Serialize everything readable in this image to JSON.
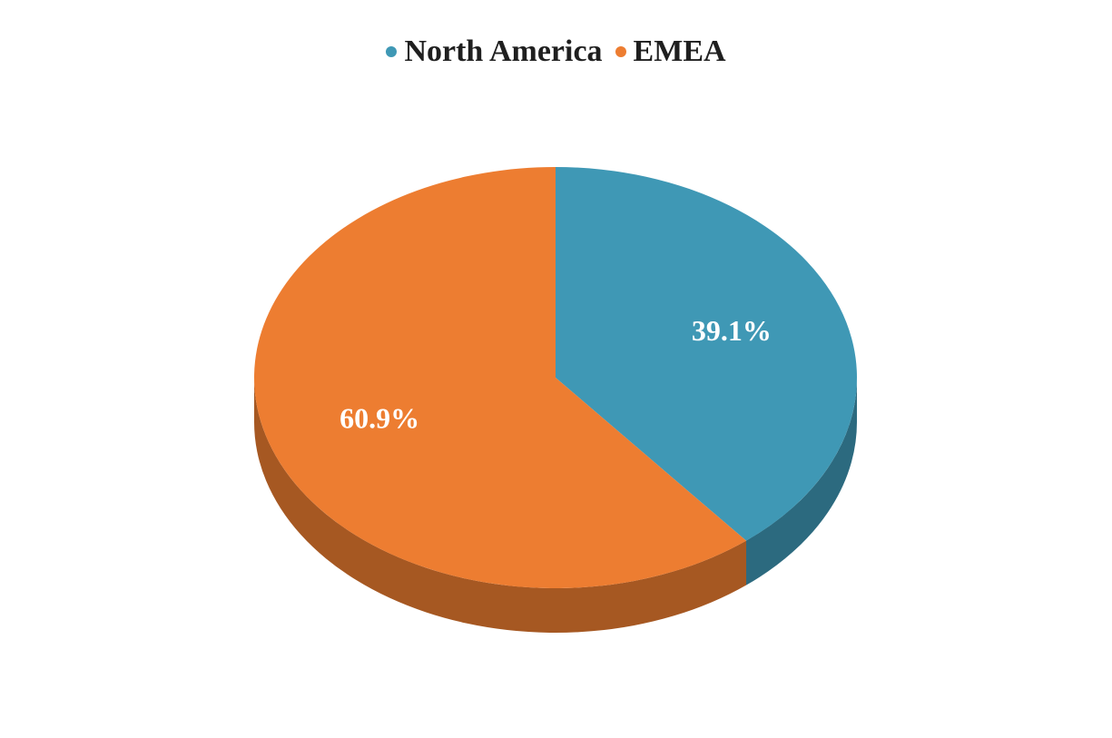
{
  "chart_data": {
    "type": "pie",
    "title": "",
    "categories": [
      "North America",
      "EMEA"
    ],
    "values": [
      39.1,
      60.9
    ],
    "data_labels": [
      "39.1%",
      "60.9%"
    ],
    "colors": [
      "#3f98b5",
      "#ed7d31"
    ],
    "legend_position": "top",
    "style": "3d"
  },
  "legend": {
    "items": [
      {
        "label": "North America",
        "color": "#3f98b5"
      },
      {
        "label": "EMEA",
        "color": "#ed7d31"
      }
    ]
  }
}
